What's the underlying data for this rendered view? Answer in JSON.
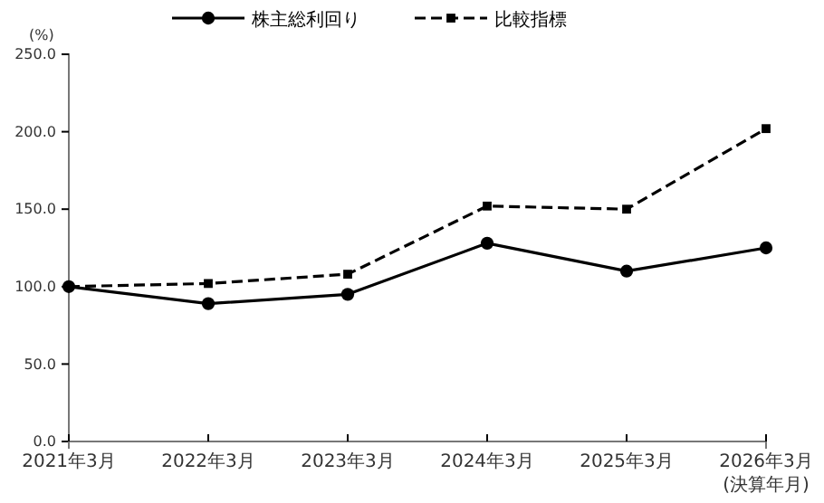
{
  "chart_data": {
    "type": "line",
    "ylabel": "(%)",
    "categories": [
      "2021年3月",
      "2022年3月",
      "2023年3月",
      "2024年3月",
      "2025年3月",
      "2026年3月"
    ],
    "annotations": [
      "(決算年月)"
    ],
    "series": [
      {
        "name": "株主総利回り",
        "color": "#000000",
        "values": [
          100,
          89,
          95,
          128,
          110,
          125
        ],
        "marker": "circle",
        "line_style": "solid"
      },
      {
        "name": "比較指標",
        "color": "#000000",
        "values": [
          100,
          102,
          108,
          152,
          150,
          202
        ],
        "marker": "square",
        "line_style": "dashed"
      }
    ],
    "ylim": [
      0,
      250
    ],
    "yticks": [
      {
        "value": 0,
        "label": "0.0"
      },
      {
        "value": 50,
        "label": "50.0"
      },
      {
        "value": 100,
        "label": "100.0"
      },
      {
        "value": 150,
        "label": "150.0"
      },
      {
        "value": 200,
        "label": "200.0"
      },
      {
        "value": 250,
        "label": "250.0"
      }
    ],
    "grid": false,
    "legend": "top"
  }
}
